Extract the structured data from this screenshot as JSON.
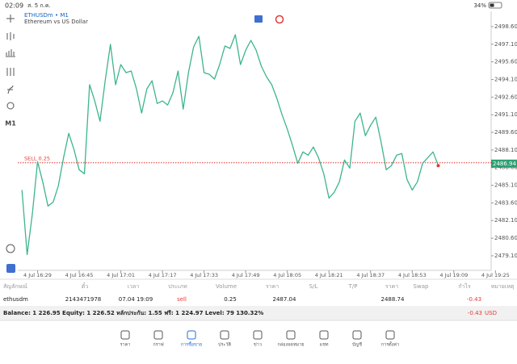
{
  "status_bar": {
    "time": "02:09",
    "date": "ส. 5 ก.ค.",
    "battery": "34%"
  },
  "toolbar": {
    "timeframe": "M1"
  },
  "chart_data": {
    "type": "line",
    "title": "ETHUSDm • M1",
    "subtitle": "Ethereum vs US Dollar",
    "color": "#3db58c",
    "values": [
      2484.7,
      2479.2,
      2482.64,
      2487.11,
      2485.39,
      2483.33,
      2483.67,
      2485.05,
      2487.45,
      2489.52,
      2488.14,
      2486.42,
      2486.08,
      2493.65,
      2492.27,
      2490.55,
      2493.99,
      2497.09,
      2493.65,
      2495.37,
      2494.68,
      2494.82,
      2493.3,
      2491.24,
      2493.3,
      2493.99,
      2492.06,
      2492.27,
      2491.93,
      2492.96,
      2494.82,
      2491.58,
      2494.68,
      2496.88,
      2497.77,
      2494.68,
      2494.54,
      2494.13,
      2495.37,
      2496.95,
      2496.74,
      2497.91,
      2495.37,
      2496.6,
      2497.43,
      2496.6,
      2495.23,
      2494.33,
      2493.65,
      2492.48,
      2491.1,
      2489.86,
      2488.49,
      2486.97,
      2487.94,
      2487.66,
      2488.35,
      2487.45,
      2486.08,
      2484.01,
      2484.5,
      2485.39,
      2487.25,
      2486.56,
      2490.55,
      2491.24,
      2489.31,
      2490.21,
      2490.89,
      2488.83,
      2486.42,
      2486.77,
      2487.66,
      2487.8,
      2485.6,
      2484.7,
      2485.39,
      2486.97,
      2487.45,
      2487.94,
      2486.77
    ],
    "xlim": [
      -0.8,
      91.1
    ],
    "xticks": [
      {
        "value": 3,
        "label": "4 Jul 16:29"
      },
      {
        "value": 11,
        "label": "4 Jul 16:45"
      },
      {
        "value": 19,
        "label": "4 Jul 17:01"
      },
      {
        "value": 27,
        "label": "4 Jul 17:17"
      },
      {
        "value": 35,
        "label": "4 Jul 17:33"
      },
      {
        "value": 43,
        "label": "4 Jul 17:49"
      },
      {
        "value": 51,
        "label": "4 Jul 18:05"
      },
      {
        "value": 59,
        "label": "4 Jul 18:21"
      },
      {
        "value": 67,
        "label": "4 Jul 18:37"
      },
      {
        "value": 75,
        "label": "4 Jul 18:53"
      },
      {
        "value": 83,
        "label": "4 Jul 19:09"
      },
      {
        "value": 91,
        "label": "4 Jul 19:25"
      }
    ],
    "ylim": [
      2477.86,
      2499.9
    ],
    "yticks": [
      {
        "value": 2498.6,
        "label": "2498.60"
      },
      {
        "value": 2497.1,
        "label": "2497.10"
      },
      {
        "value": 2495.6,
        "label": "2495.60"
      },
      {
        "value": 2494.1,
        "label": "2494.10"
      },
      {
        "value": 2492.6,
        "label": "2492.60"
      },
      {
        "value": 2491.1,
        "label": "2491.10"
      },
      {
        "value": 2489.6,
        "label": "2489.60"
      },
      {
        "value": 2488.1,
        "label": "2488.10"
      },
      {
        "value": 2486.6,
        "label": "2486.60"
      },
      {
        "value": 2485.1,
        "label": "2485.10"
      },
      {
        "value": 2483.6,
        "label": "2483.60"
      },
      {
        "value": 2482.1,
        "label": "2482.10"
      },
      {
        "value": 2480.6,
        "label": "2480.60"
      },
      {
        "value": 2479.1,
        "label": "2479.10"
      }
    ],
    "order_line": {
      "label": "SELL 0.25",
      "value": 2487.04,
      "color": "#e53935"
    },
    "current_price": {
      "value": 2486.94,
      "label": "2486.94",
      "color": "#2e9e72"
    }
  },
  "positions": {
    "columns": [
      "สัญลักษณ์",
      "ตั๋ว",
      "เวลา",
      "ประเภท",
      "Volume",
      "ราคา",
      "S/L",
      "T/P",
      "ราคา",
      "Swap",
      "กำไร",
      "หมายเหตุ"
    ],
    "rows": [
      {
        "symbol": "ethusdm",
        "ticket": "2143471978",
        "time": "07.04 19:09",
        "type": "sell",
        "volume": 0.25,
        "price": 2487.04,
        "current_price": 2488.74,
        "profit": -0.43
      }
    ]
  },
  "summary": {
    "text": "Balance: 1 226.95 Equity: 1 226.52 หลักประกัน: 1.55 ฟรี: 1 224.97 Level: 79 130.32%",
    "profit": -0.43,
    "currency": "USD"
  },
  "nav": {
    "items": [
      "ราคา",
      "กราฟ",
      "การซื้อขาย",
      "ประวัติ",
      "ข่าว",
      "กล่องจดหมาย",
      "แชท",
      "บัญชี",
      "การตั้งค่า"
    ],
    "active": 2
  }
}
